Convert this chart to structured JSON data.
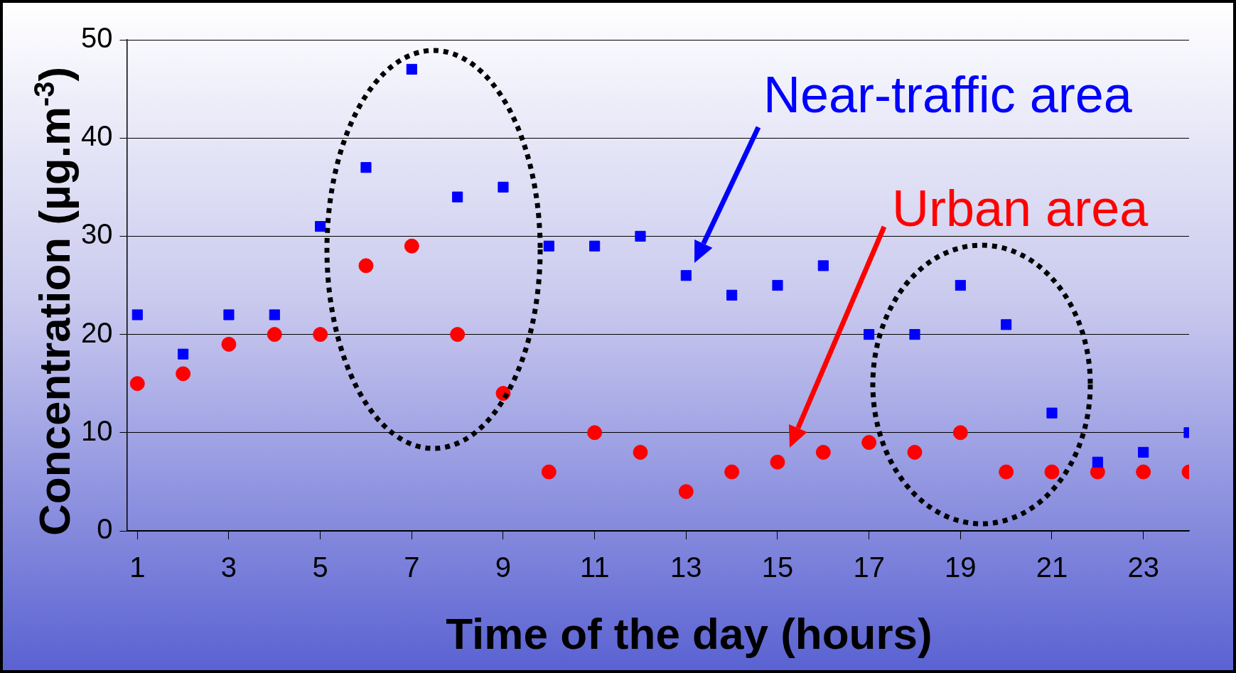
{
  "chart_data": {
    "type": "scatter",
    "xlabel": "Time of the day (hours)",
    "ylabel": "Concentration (µg.m$^{-3}$)",
    "x": [
      1,
      2,
      3,
      4,
      5,
      6,
      7,
      8,
      9,
      10,
      11,
      12,
      13,
      14,
      15,
      16,
      17,
      18,
      19,
      20,
      21,
      22,
      23,
      24
    ],
    "xlim": [
      0.77,
      24
    ],
    "xticks": [
      1,
      3,
      5,
      7,
      9,
      11,
      13,
      15,
      17,
      19,
      21,
      23
    ],
    "ylim": [
      0,
      50
    ],
    "yticks": [
      0,
      10,
      20,
      30,
      40,
      50
    ],
    "grid": "y",
    "series": [
      {
        "name": "Near-traffic area",
        "color": "#0000ff",
        "marker": "square",
        "values": [
          22,
          18,
          22,
          22,
          31,
          37,
          47,
          34,
          35,
          29,
          29,
          30,
          26,
          24,
          25,
          27,
          20,
          20,
          25,
          21,
          12,
          7,
          8,
          10
        ]
      },
      {
        "name": "Urban area",
        "color": "#ff0000",
        "marker": "circle",
        "values": [
          15,
          16,
          19,
          20,
          20,
          27,
          29,
          20,
          14,
          6,
          10,
          8,
          4,
          6,
          7,
          8,
          9,
          8,
          10,
          6,
          6,
          6,
          6,
          6
        ]
      }
    ]
  }
}
